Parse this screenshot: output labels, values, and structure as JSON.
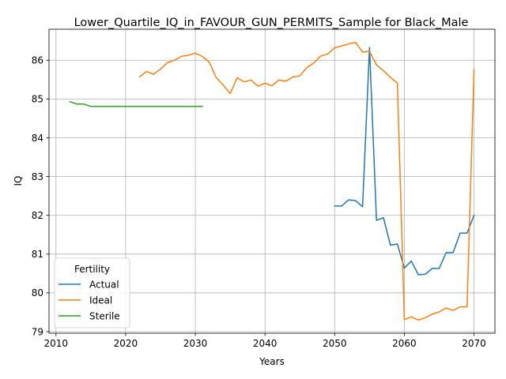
{
  "chart_data": {
    "type": "line",
    "title": "Lower_Quartile_IQ_in_FAVOUR_GUN_PERMITS_Sample for Black_Male",
    "xlabel": "Years",
    "ylabel": "IQ",
    "xlim": [
      2009.0,
      2073.0
    ],
    "ylim": [
      78.96,
      86.8
    ],
    "xticks": [
      2010,
      2020,
      2030,
      2040,
      2050,
      2060,
      2070
    ],
    "yticks": [
      79,
      80,
      81,
      82,
      83,
      84,
      85,
      86
    ],
    "grid": true,
    "legend": {
      "title": "Fertility",
      "placement": "lower-left"
    },
    "series": [
      {
        "name": "Actual",
        "color": "#1f77b4",
        "x": [
          2050,
          2051,
          2052,
          2053,
          2054,
          2055,
          2056,
          2057,
          2058,
          2059,
          2060,
          2061,
          2062,
          2063,
          2064,
          2065,
          2066,
          2067,
          2068,
          2069,
          2070
        ],
        "y": [
          82.24,
          82.24,
          82.4,
          82.38,
          82.22,
          86.33,
          81.87,
          81.94,
          81.23,
          81.26,
          80.64,
          80.82,
          80.47,
          80.48,
          80.63,
          80.63,
          81.04,
          81.04,
          81.54,
          81.54,
          82.0
        ]
      },
      {
        "name": "Ideal",
        "color": "#ff7f0e",
        "x": [
          2022,
          2023,
          2024,
          2025,
          2026,
          2027,
          2028,
          2029,
          2030,
          2031,
          2032,
          2033,
          2034,
          2035,
          2036,
          2037,
          2038,
          2039,
          2040,
          2041,
          2042,
          2043,
          2044,
          2045,
          2046,
          2047,
          2048,
          2049,
          2050,
          2051,
          2052,
          2053,
          2054,
          2055,
          2056,
          2057,
          2058,
          2059,
          2060,
          2061,
          2062,
          2063,
          2064,
          2065,
          2066,
          2067,
          2068,
          2069,
          2070
        ],
        "y": [
          85.57,
          85.71,
          85.64,
          85.77,
          85.94,
          86.0,
          86.1,
          86.13,
          86.18,
          86.1,
          85.95,
          85.55,
          85.36,
          85.14,
          85.55,
          85.44,
          85.49,
          85.33,
          85.41,
          85.34,
          85.49,
          85.46,
          85.57,
          85.6,
          85.81,
          85.93,
          86.11,
          86.16,
          86.32,
          86.37,
          86.42,
          86.46,
          86.21,
          86.23,
          85.88,
          85.73,
          85.56,
          85.41,
          79.31,
          79.38,
          79.3,
          79.36,
          79.45,
          79.51,
          79.61,
          79.55,
          79.64,
          79.64,
          85.76
        ]
      },
      {
        "name": "Sterile",
        "color": "#2ca02c",
        "x": [
          2012,
          2013,
          2014,
          2015,
          2016,
          2017,
          2018,
          2019,
          2020,
          2021,
          2022,
          2023,
          2024,
          2025,
          2026,
          2027,
          2028,
          2029,
          2030,
          2031
        ],
        "y": [
          84.93,
          84.87,
          84.87,
          84.81,
          84.81,
          84.81,
          84.81,
          84.81,
          84.81,
          84.81,
          84.81,
          84.81,
          84.81,
          84.81,
          84.81,
          84.81,
          84.81,
          84.81,
          84.81,
          84.81
        ]
      }
    ]
  }
}
